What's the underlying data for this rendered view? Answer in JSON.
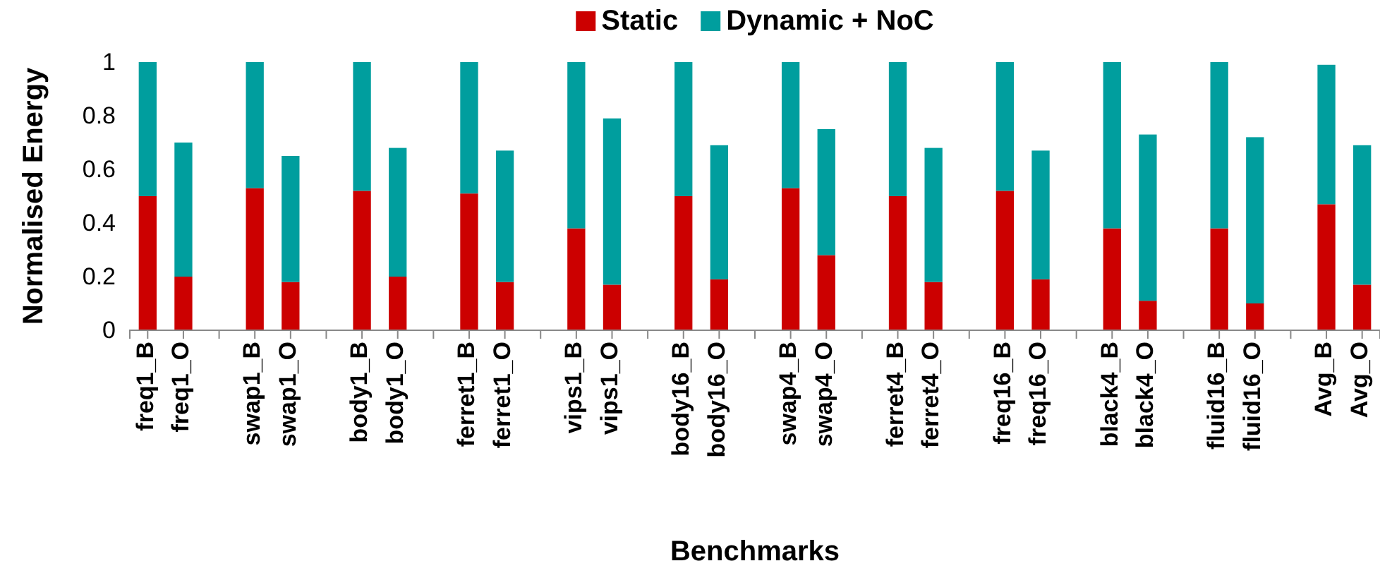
{
  "chart_data": {
    "type": "bar",
    "stacked": true,
    "xlabel": "Benchmarks",
    "ylabel": "Normalised Energy",
    "legend": "top",
    "categories": [
      "freq1_B",
      "freq1_O",
      null,
      "swap1_B",
      "swap1_O",
      null,
      "body1_B",
      "body1_O",
      null,
      "ferret1_B",
      "ferret1_O",
      null,
      "vips1_B",
      "vips1_O",
      null,
      "body16_B",
      "body16_O",
      null,
      "swap4_B",
      "swap4_O",
      null,
      "ferret4_B",
      "ferret4_O",
      null,
      "freq16_B",
      "freq16_O",
      null,
      "black4_B",
      "black4_O",
      null,
      "fluid16_B",
      "fluid16_O",
      null,
      "Avg_B",
      "Avg_O"
    ],
    "series": [
      {
        "name": "Static",
        "color": "#cc0000",
        "values": [
          0.5,
          0.2,
          null,
          0.53,
          0.18,
          null,
          0.52,
          0.2,
          null,
          0.51,
          0.18,
          null,
          0.38,
          0.17,
          null,
          0.5,
          0.19,
          null,
          0.53,
          0.28,
          null,
          0.5,
          0.18,
          null,
          0.52,
          0.19,
          null,
          0.38,
          0.11,
          null,
          0.38,
          0.1,
          null,
          0.47,
          0.17
        ]
      },
      {
        "name": "Dynamic + NoC",
        "color": "#009e9e",
        "values": [
          0.5,
          0.5,
          null,
          0.47,
          0.47,
          null,
          0.48,
          0.48,
          null,
          0.49,
          0.49,
          null,
          0.62,
          0.62,
          null,
          0.5,
          0.5,
          null,
          0.47,
          0.47,
          null,
          0.5,
          0.5,
          null,
          0.48,
          0.48,
          null,
          0.62,
          0.62,
          null,
          0.62,
          0.62,
          null,
          0.52,
          0.52
        ]
      }
    ],
    "ylim": [
      0,
      1
    ],
    "yticks": [
      0,
      0.2,
      0.4,
      0.6,
      0.8,
      1
    ]
  }
}
